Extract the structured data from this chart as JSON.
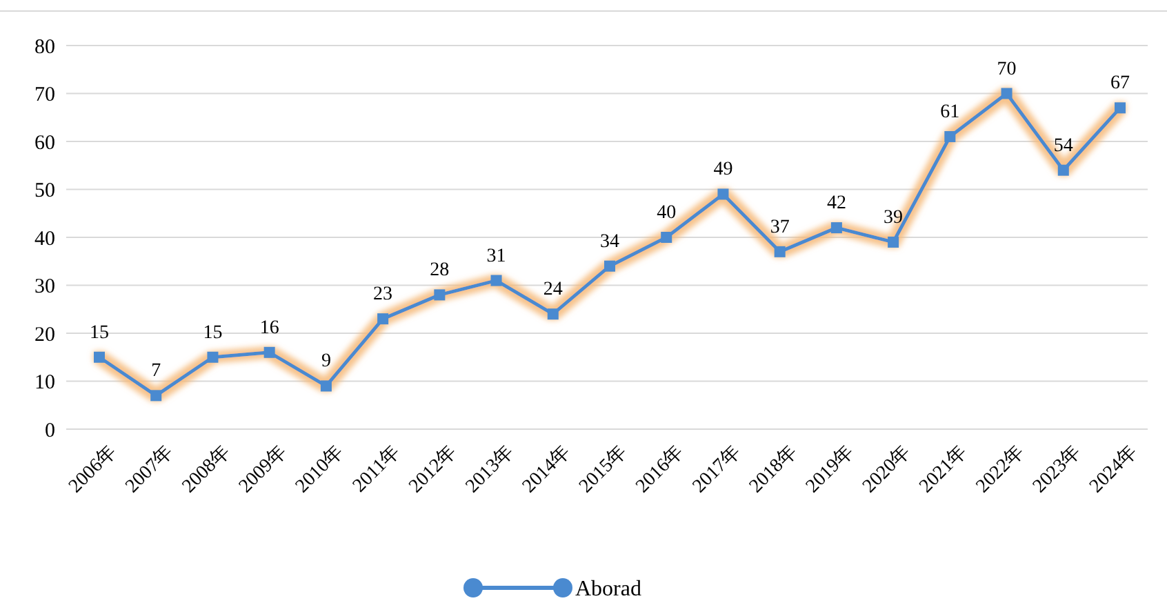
{
  "chart_data": {
    "type": "line",
    "categories": [
      "2006年",
      "2007年",
      "2008年",
      "2009年",
      "2010年",
      "2011年",
      "2012年",
      "2013年",
      "2014年",
      "2015年",
      "2016年",
      "2017年",
      "2018年",
      "2019年",
      "2020年",
      "2021年",
      "2022年",
      "2023年",
      "2024年"
    ],
    "series": [
      {
        "name": "Aborad",
        "color": "#4a8ad0",
        "values": [
          15,
          7,
          15,
          16,
          9,
          23,
          28,
          31,
          24,
          34,
          40,
          49,
          37,
          42,
          39,
          61,
          70,
          54,
          67
        ]
      }
    ],
    "ylim": [
      0,
      80
    ],
    "yticks": [
      0,
      10,
      20,
      30,
      40,
      50,
      60,
      70,
      80
    ],
    "grid": "y",
    "legend": "bottom",
    "marker": "square",
    "line_style": "solid",
    "data_labels": true
  }
}
